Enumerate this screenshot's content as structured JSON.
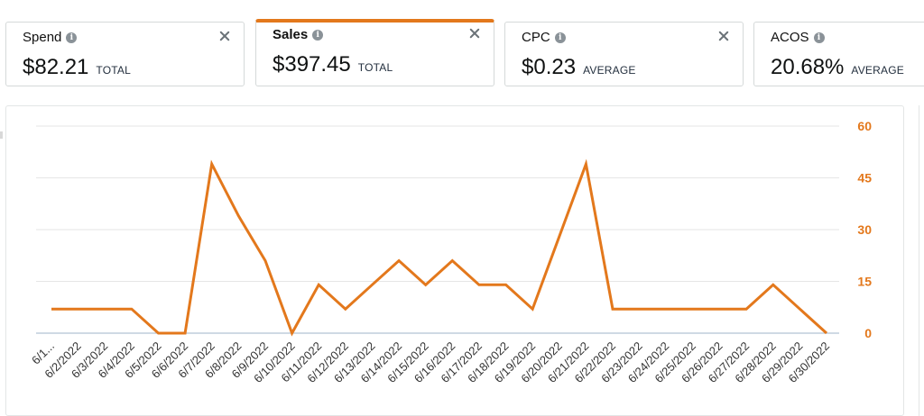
{
  "metrics": [
    {
      "label": "Spend",
      "value": "$82.21",
      "unit": "TOTAL",
      "active": false
    },
    {
      "label": "Sales",
      "value": "$397.45",
      "unit": "TOTAL",
      "active": true
    },
    {
      "label": "CPC",
      "value": "$0.23",
      "unit": "AVERAGE",
      "active": false
    },
    {
      "label": "ACOS",
      "value": "20.68%",
      "unit": "AVERAGE",
      "active": false
    }
  ],
  "icons": {
    "info": "info-icon",
    "close": "close-icon"
  },
  "colors": {
    "accent": "#e3781c",
    "border": "#d5d9d9",
    "grid": "#e6e6e6"
  },
  "chart_data": {
    "type": "line",
    "title": "",
    "xlabel": "",
    "ylabel": "",
    "x": [
      "6/1...",
      "6/2/2022",
      "6/3/2022",
      "6/4/2022",
      "6/5/2022",
      "6/6/2022",
      "6/7/2022",
      "6/8/2022",
      "6/9/2022",
      "6/10/2022",
      "6/11/2022",
      "6/12/2022",
      "6/13/2022",
      "6/14/2022",
      "6/15/2022",
      "6/16/2022",
      "6/17/2022",
      "6/18/2022",
      "6/19/2022",
      "6/20/2022",
      "6/21/2022",
      "6/22/2022",
      "6/23/2022",
      "6/24/2022",
      "6/25/2022",
      "6/26/2022",
      "6/27/2022",
      "6/28/2022",
      "6/29/2022",
      "6/30/2022"
    ],
    "series": [
      {
        "values": [
          7,
          7,
          7,
          7,
          0,
          0,
          49,
          34,
          21,
          0,
          14,
          7,
          14,
          21,
          14,
          21,
          14,
          14,
          7,
          28,
          49,
          7,
          7,
          7,
          7,
          7,
          7,
          14,
          7,
          0
        ]
      }
    ],
    "yticks": [
      "0",
      "15",
      "30",
      "45",
      "60"
    ],
    "ylim": [
      0,
      60
    ],
    "y_axis_side": "right",
    "grid": true,
    "color": "#e3781c"
  }
}
